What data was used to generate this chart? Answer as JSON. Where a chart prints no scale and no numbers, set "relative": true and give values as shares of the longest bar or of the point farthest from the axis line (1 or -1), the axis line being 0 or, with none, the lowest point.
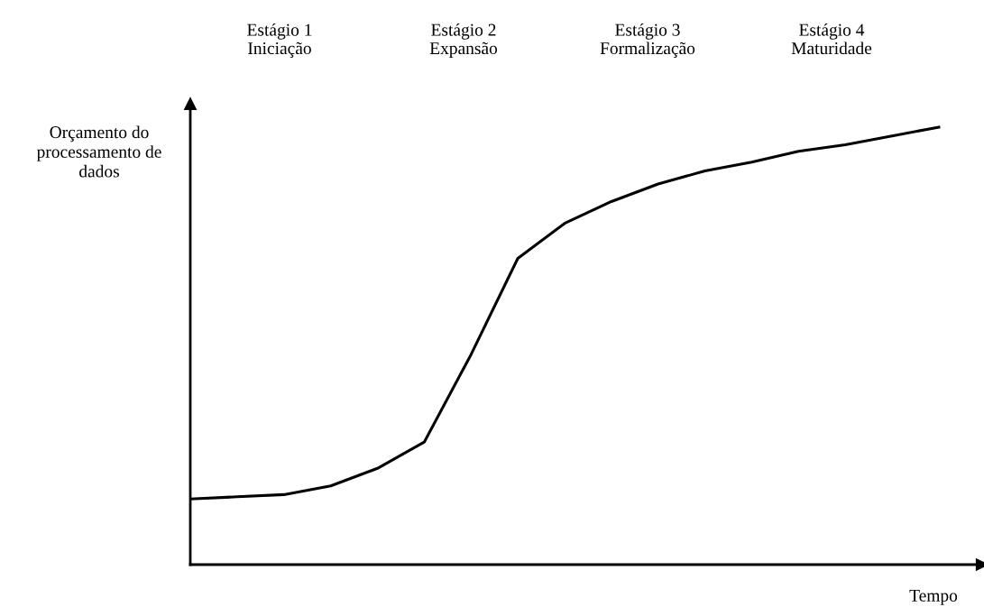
{
  "chart_data": {
    "type": "line",
    "relative": true,
    "xlabel": "Tempo",
    "ylabel": "Orçamento do\nprocessamento de\ndados",
    "annotations": [
      "Estágio 1\nIniciação",
      "Estágio 2\nExpansão",
      "Estágio 3\nFormalização",
      "Estágio 4\nMaturidade"
    ],
    "categories": [
      null,
      null,
      null,
      null,
      null,
      null,
      null,
      null,
      null,
      null,
      null,
      null,
      null,
      null,
      null,
      null,
      null
    ],
    "series": [
      {
        "color": "#000000",
        "values": [
          0.15,
          0.155,
          0.16,
          0.18,
          0.22,
          0.28,
          0.48,
          0.7,
          0.78,
          0.83,
          0.87,
          0.9,
          0.92,
          0.945,
          0.96,
          0.98,
          1.0
        ]
      }
    ],
    "marker": "none",
    "line_style": "solid",
    "legend": false
  }
}
